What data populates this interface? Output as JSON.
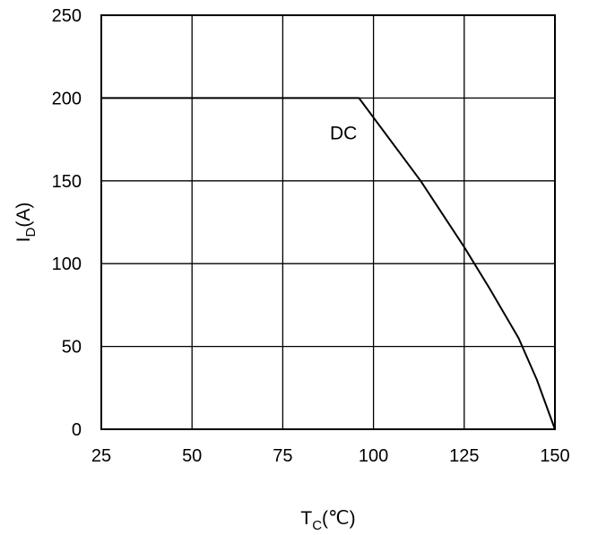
{
  "chart_data": {
    "type": "line",
    "xlabel": {
      "main": "T",
      "sub": "C",
      "unit": "(℃)"
    },
    "ylabel": {
      "main": "I",
      "sub": "D",
      "unit": "(A)"
    },
    "xlim": [
      25,
      150
    ],
    "ylim": [
      0,
      250
    ],
    "x_ticks": [
      25,
      50,
      75,
      100,
      125,
      150
    ],
    "y_ticks": [
      0,
      50,
      100,
      150,
      200,
      250
    ],
    "grid": true,
    "series": [
      {
        "x": [
          25,
          96,
          113,
          125,
          132,
          140,
          145,
          150
        ],
        "y": [
          200,
          200,
          150,
          110,
          85,
          55,
          30,
          0
        ]
      }
    ],
    "annotations": [
      {
        "text": "DC",
        "x": 88,
        "y": 175
      }
    ]
  }
}
